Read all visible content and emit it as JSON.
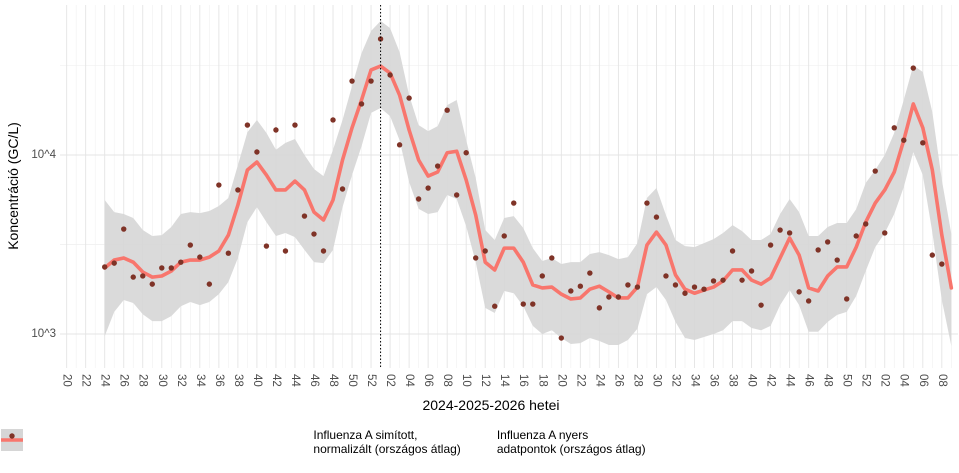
{
  "chart_data": {
    "type": "line",
    "x_label": "2024-2025-2026 hetei",
    "y_label": "Koncentráció (GC/L)",
    "log_y": true,
    "grid": true,
    "legend_position": "bottom",
    "ylim": [
      646,
      68900
    ],
    "yticks": [
      {
        "value": 1000,
        "label": "10^3"
      },
      {
        "value": 10000,
        "label": "10^4"
      }
    ],
    "vline_index": 33,
    "categories": [
      "20",
      null,
      "22",
      null,
      "24",
      null,
      "26",
      null,
      "28",
      null,
      "30",
      null,
      "32",
      null,
      "34",
      null,
      "36",
      null,
      "38",
      null,
      "40",
      null,
      "42",
      null,
      "44",
      null,
      "46",
      null,
      "48",
      null,
      "50",
      null,
      "52",
      null,
      "02",
      null,
      "04",
      null,
      "06",
      null,
      "08",
      null,
      "10",
      null,
      "12",
      null,
      "14",
      null,
      "16",
      null,
      "18",
      null,
      "20",
      null,
      "22",
      null,
      "24",
      null,
      "26",
      null,
      "28",
      null,
      "30",
      null,
      "32",
      null,
      "34",
      null,
      "36",
      null,
      "38",
      null,
      "40",
      null,
      "42",
      null,
      "44",
      null,
      "46",
      null,
      "48",
      null,
      "50",
      null,
      "52",
      null,
      "02",
      null,
      "04",
      null,
      "06",
      null,
      "08",
      null
    ],
    "series": [
      {
        "name": "Influenza A simított,\nnormalizált (országos átlag)",
        "mode": "line",
        "color": "#f8766d",
        "band_color": "#d6d6d6",
        "values": [
          null,
          null,
          null,
          null,
          2340,
          2590,
          2660,
          2520,
          2220,
          2080,
          2110,
          2250,
          2520,
          2590,
          2590,
          2690,
          2910,
          3570,
          5260,
          8250,
          9140,
          7730,
          6380,
          6380,
          7150,
          6380,
          4800,
          4340,
          5610,
          9380,
          14200,
          20300,
          29900,
          31400,
          28700,
          21600,
          13800,
          9380,
          7630,
          8040,
          10300,
          10500,
          7250,
          4620,
          2520,
          2280,
          3020,
          3020,
          2520,
          1880,
          1810,
          1830,
          1670,
          1570,
          1590,
          1780,
          1850,
          1720,
          1590,
          1590,
          1830,
          3140,
          3710,
          3140,
          2140,
          1780,
          1690,
          1760,
          1830,
          1980,
          2280,
          2280,
          2000,
          1900,
          2060,
          2660,
          3440,
          2760,
          1810,
          1740,
          2110,
          2370,
          2370,
          3060,
          4220,
          5390,
          6380,
          8040,
          12100,
          19300,
          14200,
          8250,
          3570,
          1810
        ],
        "upper": [
          null,
          null,
          null,
          null,
          5610,
          4800,
          4680,
          4450,
          3810,
          3530,
          3570,
          3960,
          4680,
          4800,
          4740,
          4870,
          5190,
          5750,
          8790,
          13400,
          15700,
          13300,
          10700,
          11700,
          12300,
          10000,
          8350,
          7630,
          10700,
          15700,
          24300,
          37100,
          49300,
          56100,
          51200,
          37600,
          21600,
          14700,
          13600,
          14500,
          19000,
          20300,
          12100,
          7440,
          3810,
          3350,
          4450,
          4560,
          3910,
          3020,
          2560,
          2660,
          2460,
          2520,
          2520,
          2800,
          2870,
          2760,
          2620,
          2690,
          3220,
          5750,
          6540,
          4620,
          3350,
          3100,
          3060,
          3220,
          3390,
          3670,
          4060,
          3760,
          3350,
          3350,
          3620,
          4680,
          5680,
          4800,
          3530,
          3530,
          3960,
          4170,
          4170,
          4990,
          6980,
          8250,
          10000,
          13300,
          20300,
          31700,
          29100,
          17400,
          7250,
          3620
        ],
        "lower": [
          null,
          null,
          null,
          null,
          974,
          1330,
          1550,
          1490,
          1290,
          1180,
          1180,
          1260,
          1430,
          1510,
          1450,
          1510,
          1670,
          1950,
          2660,
          4220,
          5120,
          4220,
          3530,
          3670,
          3480,
          2950,
          2520,
          2490,
          2950,
          5120,
          7730,
          11200,
          17200,
          18300,
          16500,
          12100,
          7070,
          5000,
          4680,
          4800,
          5980,
          5680,
          4000,
          2520,
          1400,
          1310,
          1740,
          1690,
          1430,
          1110,
          1000,
          1050,
          950,
          880,
          890,
          950,
          914,
          868,
          868,
          926,
          1070,
          1670,
          1830,
          1550,
          1170,
          950,
          926,
          962,
          1000,
          1050,
          1180,
          1180,
          1080,
          1050,
          1110,
          1450,
          1760,
          1450,
          1030,
          1030,
          1170,
          1280,
          1330,
          1630,
          2250,
          3060,
          3670,
          4680,
          6630,
          10400,
          7730,
          3710,
          1550,
          857
        ]
      },
      {
        "name": "Influenza A nyers\nadatpontok (országos átlag)",
        "mode": "markers",
        "color": "#7f3327",
        "values": [
          null,
          null,
          null,
          null,
          2370,
          2490,
          3860,
          2080,
          2110,
          1900,
          2340,
          2340,
          2520,
          3140,
          2690,
          1900,
          6800,
          2830,
          6380,
          14700,
          10400,
          3100,
          13800,
          2910,
          14700,
          4560,
          3620,
          2910,
          15700,
          6460,
          25900,
          19300,
          25900,
          44500,
          28000,
          11400,
          20800,
          5680,
          6540,
          8680,
          17800,
          5980,
          10300,
          2660,
          2910,
          1430,
          3530,
          5390,
          1470,
          1470,
          2110,
          2660,
          950,
          1740,
          1850,
          2190,
          1400,
          1610,
          1610,
          1880,
          1830,
          5390,
          4500,
          2110,
          1880,
          1690,
          1830,
          1780,
          1980,
          2000,
          2910,
          2000,
          2250,
          1450,
          3140,
          3810,
          3670,
          1720,
          1530,
          2950,
          3270,
          2590,
          1570,
          3530,
          4120,
          8140,
          3670,
          14200,
          12100,
          30600,
          11700,
          2760,
          2460,
          null
        ]
      }
    ]
  }
}
